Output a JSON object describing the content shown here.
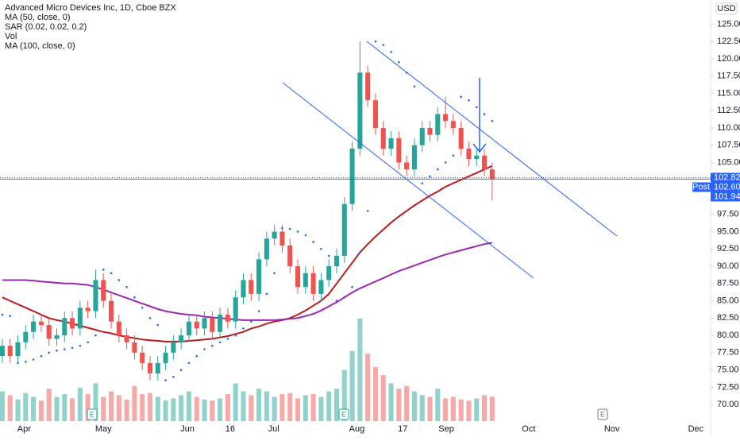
{
  "chart_data": {
    "type": "candlestick",
    "title": "Advanced Micro Devices Inc, 1D, Cboe BZX",
    "currency": "USD",
    "volume_name": "Vol",
    "categories": [
      null,
      null,
      null,
      null,
      null,
      null,
      null,
      null,
      null,
      null,
      null,
      null,
      null,
      null,
      null,
      null,
      null,
      null,
      null,
      null,
      null,
      null,
      null,
      null,
      null,
      null,
      null,
      null,
      null,
      null,
      null,
      null,
      null,
      null,
      null,
      null,
      null,
      null,
      null,
      null,
      null,
      null,
      null,
      null,
      null,
      null,
      null,
      null,
      null,
      null,
      null,
      null,
      null,
      null,
      null,
      null,
      null,
      null,
      null,
      null,
      null,
      null,
      null,
      null
    ],
    "open": [
      77,
      78.5,
      77,
      79,
      80.5,
      82,
      81.5,
      79.5,
      80,
      82.5,
      81,
      84,
      83.5,
      88,
      85,
      82,
      80,
      79,
      77.5,
      76,
      74.5,
      76,
      77.5,
      79,
      80,
      82,
      81,
      82.5,
      80.5,
      83,
      82,
      85.5,
      88,
      86,
      91,
      94,
      95,
      93,
      90,
      87,
      89,
      86,
      88,
      90,
      91.5,
      99,
      107,
      118,
      114,
      110,
      107,
      108.5,
      105,
      104,
      107.5,
      110,
      109,
      112,
      111,
      110,
      107,
      105.5,
      106,
      104
    ],
    "high": [
      79.5,
      79.5,
      80,
      81.5,
      83,
      83,
      82.5,
      81,
      83.5,
      83.5,
      85,
      85,
      89.5,
      89,
      86,
      83,
      81,
      80,
      78.5,
      77,
      77,
      78.5,
      80,
      81,
      83,
      83,
      83.5,
      83.5,
      84,
      84,
      86.5,
      89,
      89,
      92,
      95,
      96,
      96,
      94,
      91,
      90,
      90,
      89,
      91,
      92.5,
      100,
      108,
      122.5,
      119,
      115,
      111,
      109.5,
      109.5,
      106,
      108.5,
      111,
      111,
      113,
      114.5,
      112,
      111,
      108,
      107,
      107,
      105
    ],
    "low": [
      76,
      76,
      76,
      78,
      79.5,
      80.5,
      78.5,
      78.5,
      79,
      80,
      80,
      82.5,
      82.5,
      84,
      81,
      79,
      78,
      76.5,
      75,
      73.5,
      73.5,
      75,
      76.5,
      78,
      79,
      80,
      80,
      79.5,
      79.5,
      81,
      81,
      84.5,
      85,
      85,
      90,
      93,
      92,
      89,
      86,
      86,
      85,
      85,
      87,
      89,
      90.5,
      98,
      106,
      113,
      109,
      106,
      106,
      104,
      103,
      103,
      106.5,
      108,
      108,
      110,
      109,
      106,
      104.5,
      104.5,
      103,
      99.5
    ],
    "close": [
      78.5,
      77,
      79,
      80.5,
      82,
      81.5,
      79.5,
      80,
      82.5,
      81,
      84,
      83.5,
      88,
      85,
      82,
      80,
      79,
      77.5,
      76,
      74.5,
      76,
      77.5,
      79,
      80,
      82,
      81,
      82.5,
      80.5,
      83,
      82,
      85.5,
      88,
      86,
      91,
      94,
      95,
      93,
      90,
      87,
      89,
      86,
      88,
      90,
      91.5,
      99,
      107,
      118,
      114,
      110,
      107,
      108.5,
      105,
      104,
      107.5,
      110,
      109,
      112,
      111,
      110,
      107,
      105.5,
      106,
      104,
      102.6
    ],
    "volume": [
      55,
      48,
      40,
      52,
      45,
      38,
      60,
      45,
      50,
      42,
      62,
      50,
      70,
      45,
      55,
      48,
      40,
      65,
      50,
      52,
      45,
      38,
      42,
      48,
      55,
      45,
      40,
      38,
      42,
      50,
      70,
      55,
      48,
      60,
      55,
      45,
      50,
      52,
      42,
      48,
      50,
      45,
      55,
      60,
      95,
      130,
      190,
      125,
      100,
      85,
      70,
      60,
      65,
      55,
      48,
      45,
      60,
      42,
      45,
      40,
      38,
      42,
      48,
      45
    ],
    "volume_lim": [
      0,
      200
    ],
    "up_color": "#26a69a",
    "down_color": "#ef5350",
    "series": [
      {
        "name": "MA (50, close, 0)",
        "color": "#b71c1c",
        "style": "line",
        "values": [
          85.5,
          85,
          84.5,
          84,
          83.5,
          83,
          82.5,
          82.2,
          82,
          81.7,
          81.4,
          81.1,
          80.8,
          80.5,
          80.3,
          80,
          79.8,
          79.6,
          79.4,
          79.3,
          79.2,
          79.1,
          79.1,
          79.1,
          79.2,
          79.3,
          79.4,
          79.5,
          79.7,
          79.9,
          80.2,
          80.5,
          81,
          81.3,
          81.7,
          82,
          82.2,
          82.5,
          83,
          83.6,
          84.3,
          85,
          86,
          87.5,
          89,
          90.5,
          92,
          93.2,
          94.3,
          95.3,
          96.3,
          97.2,
          98,
          98.8,
          99.5,
          100.2,
          100.8,
          101.5,
          102,
          102.5,
          103,
          103.5,
          104,
          104.5
        ]
      },
      {
        "name": "SAR (0.02, 0.02, 0.2)",
        "color": "#2962ff",
        "style": "dots",
        "values": [
          83,
          82.8,
          76,
          76.2,
          76.5,
          77,
          77.5,
          77.8,
          78,
          78.2,
          78.5,
          79,
          80,
          89.5,
          89,
          88,
          87,
          85.5,
          84,
          82.5,
          81.5,
          73.5,
          74,
          75,
          76,
          77,
          78,
          78.5,
          79,
          79.5,
          80,
          81,
          82,
          83.5,
          86,
          89,
          95.5,
          95.4,
          95,
          94.5,
          93.5,
          92.5,
          91.5,
          85,
          85.5,
          87,
          92,
          98,
          122.5,
          122,
          121,
          119.5,
          118,
          116,
          102,
          103,
          104,
          105,
          106,
          114.5,
          114,
          113,
          112,
          111
        ]
      },
      {
        "name": "MA (100, close, 0)",
        "color": "#9c27b0",
        "style": "line",
        "values": [
          88,
          88,
          88,
          88,
          87.9,
          87.8,
          87.7,
          87.6,
          87.5,
          87.5,
          87.4,
          87.3,
          87,
          86.6,
          86.2,
          85.8,
          85.4,
          85,
          84.6,
          84.2,
          83.8,
          83.5,
          83.3,
          83.1,
          83,
          82.9,
          82.7,
          82.6,
          82.5,
          82.4,
          82.3,
          82.2,
          82.2,
          82.2,
          82.2,
          82.2,
          82.3,
          82.4,
          82.5,
          82.8,
          83.1,
          83.6,
          84.2,
          84.8,
          85.5,
          86.2,
          86.8,
          87.3,
          87.8,
          88.3,
          88.8,
          89.3,
          89.7,
          90.1,
          90.5,
          90.9,
          91.3,
          91.7,
          92,
          92.3,
          92.6,
          92.9,
          93.2,
          93.4
        ]
      }
    ],
    "ylim": [
      67.6,
      128.5
    ],
    "yticks": [
      {
        "value": 70,
        "label": "70.00"
      },
      {
        "value": 72.5,
        "label": "72.50"
      },
      {
        "value": 75,
        "label": "75.00"
      },
      {
        "value": 77.5,
        "label": "77.50"
      },
      {
        "value": 80,
        "label": "80.00"
      },
      {
        "value": 82.5,
        "label": "82.50"
      },
      {
        "value": 85,
        "label": "85.00"
      },
      {
        "value": 87.5,
        "label": "87.50"
      },
      {
        "value": 90,
        "label": "90.00"
      },
      {
        "value": 92.5,
        "label": "92.50"
      },
      {
        "value": 95,
        "label": "95.00"
      },
      {
        "value": 97.5,
        "label": "97.50"
      },
      {
        "value": 100,
        "label": "100.00"
      },
      {
        "value": 102.5,
        "label": "102.50"
      },
      {
        "value": 105,
        "label": "105.00"
      },
      {
        "value": 107.5,
        "label": "107.50"
      },
      {
        "value": 110,
        "label": "110.00"
      },
      {
        "value": 112.5,
        "label": "112.50"
      },
      {
        "value": 115,
        "label": "115.00"
      },
      {
        "value": 117.5,
        "label": "117.50"
      },
      {
        "value": 120,
        "label": "120.00"
      },
      {
        "value": 122.5,
        "label": "122.50"
      },
      {
        "value": 125,
        "label": "125.00"
      }
    ],
    "xlim": [
      -0.3,
      91.1
    ],
    "xticks": [
      {
        "value": 2.8,
        "label": "Apr"
      },
      {
        "value": 13,
        "label": "May"
      },
      {
        "value": 23.8,
        "label": "Jun"
      },
      {
        "value": 29.3,
        "label": "16"
      },
      {
        "value": 34.9,
        "label": "Jul"
      },
      {
        "value": 45.6,
        "label": "Aug"
      },
      {
        "value": 51.5,
        "label": "17"
      },
      {
        "value": 57.1,
        "label": "Sep"
      },
      {
        "value": 67.7,
        "label": "Oct"
      },
      {
        "value": 78.4,
        "label": "Nov"
      },
      {
        "value": 89.2,
        "label": "Dec"
      }
    ],
    "grid": false,
    "last_price": 102.82,
    "post_label": "Post",
    "post_price": {
      "value": 102.6,
      "label": "102.60"
    },
    "bid_price": 101.94,
    "price_label_color": "#2962ff",
    "earnings_markers": [
      "E",
      "E",
      "E"
    ]
  }
}
